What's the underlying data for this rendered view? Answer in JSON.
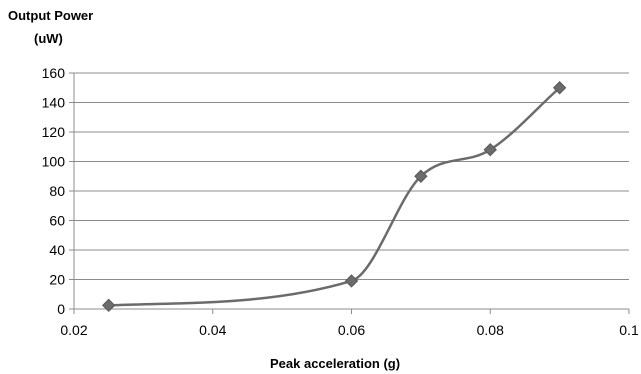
{
  "chart_data": {
    "type": "line",
    "title": "",
    "ylabel_lines": [
      "Output Power",
      "(uW)"
    ],
    "xlabel": "Peak acceleration (g)",
    "xlim": [
      0.02,
      0.1
    ],
    "ylim": [
      0,
      160
    ],
    "xticks": [
      0.02,
      0.04,
      0.06,
      0.08,
      0.1
    ],
    "xtick_labels": [
      "0.02",
      "0.04",
      "0.06",
      "0.08",
      "0.1"
    ],
    "yticks": [
      0,
      20,
      40,
      60,
      80,
      100,
      120,
      140,
      160
    ],
    "ytick_labels": [
      "0",
      "20",
      "40",
      "60",
      "80",
      "100",
      "120",
      "140",
      "160"
    ],
    "grid": "horizontal",
    "smooth": true,
    "series": [
      {
        "marker": "diamond",
        "color": "#6b6b6b",
        "x": [
          0.025,
          0.06,
          0.07,
          0.08,
          0.09
        ],
        "y": [
          2.5,
          19,
          90,
          108,
          150
        ]
      }
    ]
  }
}
